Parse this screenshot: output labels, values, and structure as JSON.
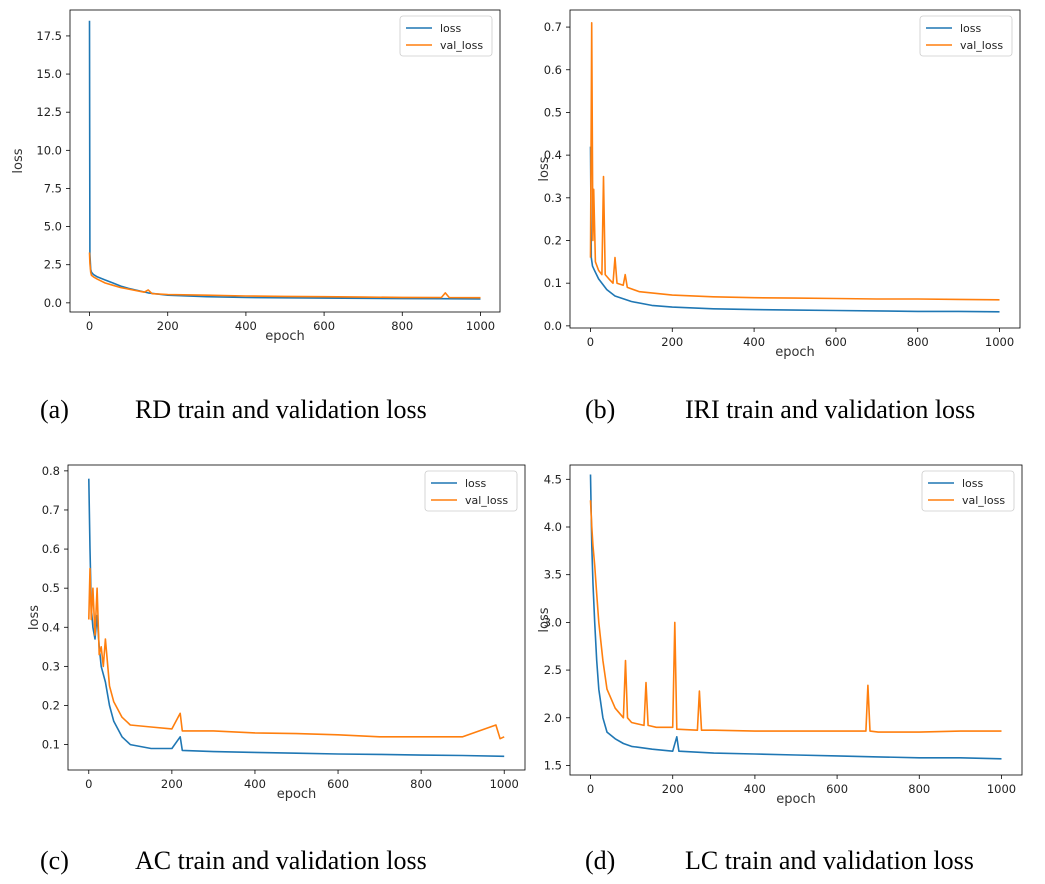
{
  "colors": {
    "loss": "#1f77b4",
    "val_loss": "#ff7f0e"
  },
  "chart_data": [
    {
      "id": "a",
      "type": "line",
      "caption_letter": "(a)",
      "caption_text": "RD train and validation loss",
      "xlabel": "epoch",
      "ylabel": "loss",
      "xlim": [
        -50,
        1050
      ],
      "ylim": [
        -0.6,
        19.2
      ],
      "xticks": [
        0,
        200,
        400,
        600,
        800,
        1000
      ],
      "yticks": [
        0.0,
        2.5,
        5.0,
        7.5,
        10.0,
        12.5,
        15.0,
        17.5
      ],
      "ytick_labels": [
        "0.0",
        "2.5",
        "5.0",
        "7.5",
        "10.0",
        "12.5",
        "15.0",
        "17.5"
      ],
      "legend_position": "top-right",
      "series": [
        {
          "name": "loss",
          "x": [
            0,
            1,
            3,
            5,
            10,
            20,
            40,
            60,
            80,
            100,
            150,
            200,
            300,
            400,
            500,
            600,
            700,
            800,
            900,
            1000
          ],
          "y": [
            18.5,
            3.2,
            2.2,
            2.0,
            1.85,
            1.7,
            1.5,
            1.3,
            1.1,
            0.95,
            0.65,
            0.5,
            0.4,
            0.35,
            0.33,
            0.31,
            0.3,
            0.28,
            0.27,
            0.26
          ]
        },
        {
          "name": "val_loss",
          "x": [
            0,
            1,
            3,
            5,
            10,
            20,
            40,
            60,
            80,
            100,
            140,
            150,
            160,
            200,
            300,
            400,
            500,
            600,
            700,
            800,
            900,
            910,
            920,
            1000
          ],
          "y": [
            3.3,
            2.6,
            2.0,
            1.8,
            1.7,
            1.55,
            1.3,
            1.15,
            1.0,
            0.9,
            0.7,
            0.85,
            0.6,
            0.55,
            0.5,
            0.45,
            0.42,
            0.4,
            0.38,
            0.36,
            0.35,
            0.65,
            0.35,
            0.34
          ]
        }
      ]
    },
    {
      "id": "b",
      "type": "line",
      "caption_letter": "(b)",
      "caption_text": "IRI train and validation loss",
      "xlabel": "epoch",
      "ylabel": "loss",
      "xlim": [
        -50,
        1050
      ],
      "ylim": [
        -0.005,
        0.74
      ],
      "xticks": [
        0,
        200,
        400,
        600,
        800,
        1000
      ],
      "yticks": [
        0.0,
        0.1,
        0.2,
        0.3,
        0.4,
        0.5,
        0.6,
        0.7
      ],
      "ytick_labels": [
        "0.0",
        "0.1",
        "0.2",
        "0.3",
        "0.4",
        "0.5",
        "0.6",
        "0.7"
      ],
      "legend_position": "top-right",
      "series": [
        {
          "name": "loss",
          "x": [
            0,
            2,
            5,
            10,
            20,
            40,
            60,
            100,
            150,
            200,
            300,
            400,
            500,
            600,
            700,
            800,
            900,
            1000
          ],
          "y": [
            0.42,
            0.16,
            0.14,
            0.13,
            0.11,
            0.085,
            0.07,
            0.057,
            0.048,
            0.044,
            0.04,
            0.038,
            0.037,
            0.036,
            0.035,
            0.034,
            0.034,
            0.033
          ]
        },
        {
          "name": "val_loss",
          "x": [
            0,
            3,
            6,
            8,
            12,
            20,
            28,
            32,
            36,
            45,
            55,
            60,
            65,
            80,
            85,
            90,
            120,
            200,
            300,
            400,
            500,
            600,
            700,
            800,
            900,
            1000
          ],
          "y": [
            0.16,
            0.71,
            0.2,
            0.32,
            0.15,
            0.13,
            0.12,
            0.35,
            0.12,
            0.11,
            0.1,
            0.16,
            0.1,
            0.095,
            0.12,
            0.09,
            0.08,
            0.072,
            0.068,
            0.066,
            0.065,
            0.064,
            0.063,
            0.063,
            0.062,
            0.061
          ]
        }
      ]
    },
    {
      "id": "c",
      "type": "line",
      "caption_letter": "(c)",
      "caption_text": "AC train and validation loss",
      "xlabel": "epoch",
      "ylabel": "loss",
      "xlim": [
        -50,
        1050
      ],
      "ylim": [
        0.035,
        0.815
      ],
      "xticks": [
        0,
        200,
        400,
        600,
        800,
        1000
      ],
      "yticks": [
        0.1,
        0.2,
        0.3,
        0.4,
        0.5,
        0.6,
        0.7,
        0.8
      ],
      "ytick_labels": [
        "0.1",
        "0.2",
        "0.3",
        "0.4",
        "0.5",
        "0.6",
        "0.7",
        "0.8"
      ],
      "legend_position": "top-right",
      "series": [
        {
          "name": "loss",
          "x": [
            0,
            3,
            6,
            10,
            15,
            20,
            25,
            30,
            40,
            50,
            60,
            80,
            100,
            150,
            200,
            220,
            225,
            300,
            400,
            500,
            600,
            700,
            800,
            900,
            1000
          ],
          "y": [
            0.78,
            0.6,
            0.45,
            0.4,
            0.37,
            0.43,
            0.35,
            0.3,
            0.26,
            0.2,
            0.16,
            0.12,
            0.1,
            0.09,
            0.09,
            0.12,
            0.085,
            0.082,
            0.08,
            0.078,
            0.076,
            0.075,
            0.073,
            0.072,
            0.07
          ]
        },
        {
          "name": "val_loss",
          "x": [
            0,
            3,
            6,
            10,
            15,
            20,
            25,
            30,
            35,
            40,
            50,
            60,
            80,
            100,
            150,
            200,
            220,
            225,
            300,
            400,
            500,
            600,
            700,
            800,
            900,
            980,
            990,
            1000
          ],
          "y": [
            0.42,
            0.55,
            0.42,
            0.5,
            0.38,
            0.5,
            0.33,
            0.35,
            0.3,
            0.37,
            0.25,
            0.21,
            0.17,
            0.15,
            0.145,
            0.14,
            0.18,
            0.135,
            0.135,
            0.13,
            0.128,
            0.125,
            0.12,
            0.12,
            0.12,
            0.15,
            0.115,
            0.12
          ]
        }
      ]
    },
    {
      "id": "d",
      "type": "line",
      "caption_letter": "(d)",
      "caption_text": "LC train and validation loss",
      "xlabel": "epoch",
      "ylabel": "loss",
      "xlim": [
        -50,
        1050
      ],
      "ylim": [
        1.4,
        4.65
      ],
      "xticks": [
        0,
        200,
        400,
        600,
        800,
        1000
      ],
      "yticks": [
        1.5,
        2.0,
        2.5,
        3.0,
        3.5,
        4.0,
        4.5
      ],
      "ytick_labels": [
        "1.5",
        "2.0",
        "2.5",
        "3.0",
        "3.5",
        "4.0",
        "4.5"
      ],
      "legend_position": "top-right",
      "series": [
        {
          "name": "loss",
          "x": [
            0,
            3,
            6,
            10,
            15,
            20,
            30,
            40,
            60,
            80,
            100,
            150,
            200,
            210,
            215,
            300,
            400,
            500,
            600,
            700,
            800,
            900,
            1000
          ],
          "y": [
            4.55,
            3.8,
            3.4,
            3.0,
            2.6,
            2.3,
            2.0,
            1.85,
            1.78,
            1.73,
            1.7,
            1.67,
            1.65,
            1.8,
            1.65,
            1.63,
            1.62,
            1.61,
            1.6,
            1.59,
            1.58,
            1.58,
            1.57
          ]
        },
        {
          "name": "val_loss",
          "x": [
            0,
            3,
            6,
            10,
            15,
            20,
            30,
            40,
            60,
            80,
            85,
            90,
            100,
            130,
            135,
            140,
            160,
            200,
            205,
            210,
            260,
            265,
            270,
            300,
            400,
            500,
            600,
            670,
            675,
            680,
            700,
            800,
            900,
            1000
          ],
          "y": [
            4.28,
            4.0,
            3.8,
            3.6,
            3.3,
            3.0,
            2.6,
            2.3,
            2.1,
            2.0,
            2.6,
            2.0,
            1.95,
            1.92,
            2.37,
            1.92,
            1.9,
            1.9,
            3.0,
            1.88,
            1.87,
            2.28,
            1.87,
            1.87,
            1.86,
            1.86,
            1.86,
            1.86,
            2.34,
            1.86,
            1.85,
            1.85,
            1.86,
            1.86
          ]
        }
      ]
    }
  ]
}
